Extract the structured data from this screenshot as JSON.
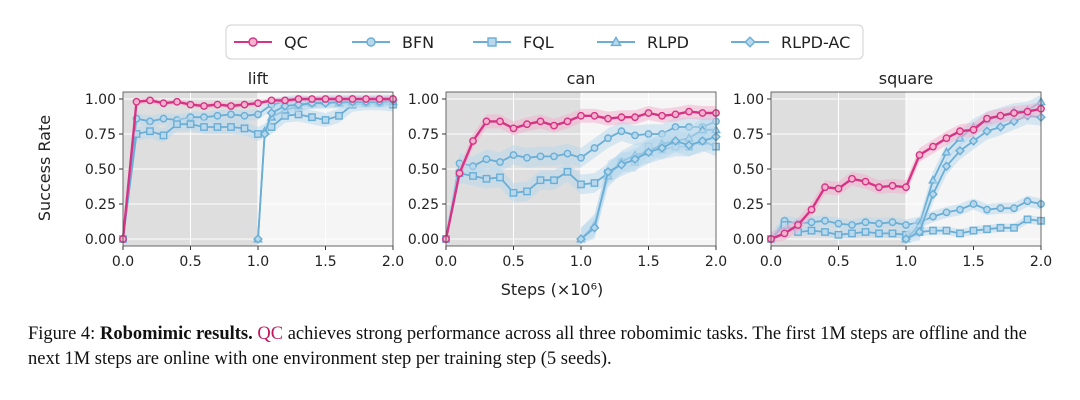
{
  "colors": {
    "qc": "#d63384",
    "qc_fill": "#f3b3cf",
    "blue": "#6aaed6",
    "blue_fill": "#b9d8ec",
    "offline_bg": "#dedede",
    "online_bg": "#f5f5f5",
    "grid": "#ffffff"
  },
  "legend": {
    "items": [
      {
        "name": "QC",
        "marker": "circle",
        "color": "#d63384"
      },
      {
        "name": "BFN",
        "marker": "circle-open",
        "color": "#6aaed6"
      },
      {
        "name": "FQL",
        "marker": "square",
        "color": "#6aaed6"
      },
      {
        "name": "RLPD",
        "marker": "triangle",
        "color": "#6aaed6"
      },
      {
        "name": "RLPD-AC",
        "marker": "diamond",
        "color": "#6aaed6"
      }
    ]
  },
  "chart_data": [
    {
      "type": "line",
      "title": "lift",
      "xlabel": "Steps (×10⁶)",
      "ylabel": "Success Rate",
      "xlim": [
        0,
        2.0
      ],
      "ylim": [
        -0.05,
        1.05
      ],
      "xticks": [
        "0.0",
        "0.5",
        "1.0",
        "1.5",
        "2.0"
      ],
      "yticks": [
        "0.00",
        "0.25",
        "0.50",
        "0.75",
        "1.00"
      ],
      "offline_region": [
        0,
        1.0
      ],
      "series": [
        {
          "name": "QC",
          "x": [
            0,
            0.1,
            0.2,
            0.3,
            0.4,
            0.5,
            0.6,
            0.7,
            0.8,
            0.9,
            1.0,
            1.1,
            1.2,
            1.3,
            1.4,
            1.5,
            1.6,
            1.7,
            1.8,
            1.9,
            2.0
          ],
          "values": [
            0,
            0.98,
            0.99,
            0.97,
            0.98,
            0.96,
            0.95,
            0.96,
            0.95,
            0.96,
            0.97,
            0.99,
            0.99,
            1.0,
            1.0,
            1.0,
            1.0,
            1.0,
            1.0,
            1.0,
            1.0
          ],
          "band": 0.02
        },
        {
          "name": "BFN",
          "x": [
            0,
            0.1,
            0.2,
            0.3,
            0.4,
            0.5,
            0.6,
            0.7,
            0.8,
            0.9,
            1.0,
            1.1,
            1.2,
            1.3,
            1.4,
            1.5,
            1.6,
            1.7,
            1.8,
            1.9,
            2.0
          ],
          "values": [
            0,
            0.86,
            0.84,
            0.86,
            0.85,
            0.87,
            0.87,
            0.88,
            0.89,
            0.88,
            0.89,
            0.96,
            0.98,
            0.99,
            0.98,
            0.99,
            0.99,
            1.0,
            0.99,
            0.99,
            1.0
          ],
          "band": 0.04
        },
        {
          "name": "FQL",
          "x": [
            0,
            0.1,
            0.2,
            0.3,
            0.4,
            0.5,
            0.6,
            0.7,
            0.8,
            0.9,
            1.0,
            1.1,
            1.2,
            1.3,
            1.4,
            1.5,
            1.6,
            1.7,
            1.8,
            1.9,
            2.0
          ],
          "values": [
            0,
            0.75,
            0.77,
            0.74,
            0.82,
            0.82,
            0.8,
            0.8,
            0.8,
            0.79,
            0.75,
            0.8,
            0.88,
            0.89,
            0.87,
            0.85,
            0.88,
            0.96,
            0.97,
            0.97,
            0.96
          ],
          "band": 0.05
        },
        {
          "name": "RLPD",
          "x": [
            1.0,
            1.05,
            1.1,
            1.2,
            1.3,
            1.4,
            1.5,
            1.6,
            1.7,
            1.8,
            1.9,
            2.0
          ],
          "values": [
            0,
            0.77,
            0.87,
            0.92,
            0.95,
            0.97,
            0.98,
            0.97,
            0.98,
            0.98,
            0.98,
            0.98
          ],
          "band": 0.04
        },
        {
          "name": "RLPD-AC",
          "x": [
            1.0,
            1.05,
            1.1,
            1.2,
            1.3,
            1.4,
            1.5,
            1.6,
            1.7,
            1.8,
            1.9,
            2.0
          ],
          "values": [
            0,
            0.75,
            0.9,
            0.95,
            0.96,
            0.97,
            0.97,
            0.98,
            0.98,
            0.98,
            0.98,
            0.99
          ],
          "band": 0.04
        }
      ]
    },
    {
      "type": "line",
      "title": "can",
      "xlim": [
        0,
        2.0
      ],
      "ylim": [
        -0.05,
        1.05
      ],
      "xticks": [
        "0.0",
        "0.5",
        "1.0",
        "1.5",
        "2.0"
      ],
      "yticks": [
        "0.00",
        "0.25",
        "0.50",
        "0.75",
        "1.00"
      ],
      "offline_region": [
        0,
        1.0
      ],
      "series": [
        {
          "name": "QC",
          "x": [
            0,
            0.1,
            0.2,
            0.3,
            0.4,
            0.5,
            0.6,
            0.7,
            0.8,
            0.9,
            1.0,
            1.1,
            1.2,
            1.3,
            1.4,
            1.5,
            1.6,
            1.7,
            1.8,
            1.9,
            2.0
          ],
          "values": [
            0,
            0.47,
            0.7,
            0.84,
            0.84,
            0.79,
            0.82,
            0.84,
            0.81,
            0.84,
            0.88,
            0.88,
            0.86,
            0.87,
            0.87,
            0.9,
            0.88,
            0.89,
            0.91,
            0.9,
            0.9
          ],
          "band": 0.05
        },
        {
          "name": "BFN",
          "x": [
            0,
            0.1,
            0.2,
            0.3,
            0.4,
            0.5,
            0.6,
            0.7,
            0.8,
            0.9,
            1.0,
            1.1,
            1.2,
            1.3,
            1.4,
            1.5,
            1.6,
            1.7,
            1.8,
            1.9,
            2.0
          ],
          "values": [
            0,
            0.54,
            0.52,
            0.57,
            0.55,
            0.6,
            0.58,
            0.59,
            0.59,
            0.61,
            0.58,
            0.65,
            0.72,
            0.77,
            0.74,
            0.75,
            0.75,
            0.8,
            0.8,
            0.8,
            0.84
          ],
          "band": 0.07
        },
        {
          "name": "FQL",
          "x": [
            0,
            0.1,
            0.2,
            0.3,
            0.4,
            0.5,
            0.6,
            0.7,
            0.8,
            0.9,
            1.0,
            1.1,
            1.2,
            1.3,
            1.4,
            1.5,
            1.6,
            1.7,
            1.8,
            1.9,
            2.0
          ],
          "values": [
            0,
            0.47,
            0.45,
            0.43,
            0.44,
            0.33,
            0.34,
            0.42,
            0.42,
            0.48,
            0.39,
            0.4,
            0.47,
            0.55,
            0.55,
            0.66,
            0.64,
            0.66,
            0.66,
            0.7,
            0.66
          ],
          "band": 0.07
        },
        {
          "name": "RLPD",
          "x": [
            1.0,
            1.1,
            1.2,
            1.3,
            1.4,
            1.5,
            1.6,
            1.7,
            1.8,
            1.9,
            2.0
          ],
          "values": [
            0,
            0.1,
            0.45,
            0.55,
            0.6,
            0.62,
            0.68,
            0.7,
            0.72,
            0.78,
            0.78
          ],
          "band": 0.08
        },
        {
          "name": "RLPD-AC",
          "x": [
            1.0,
            1.1,
            1.2,
            1.3,
            1.4,
            1.5,
            1.6,
            1.7,
            1.8,
            1.9,
            2.0
          ],
          "values": [
            0,
            0.08,
            0.48,
            0.53,
            0.57,
            0.62,
            0.65,
            0.7,
            0.67,
            0.7,
            0.73
          ],
          "band": 0.08
        }
      ]
    },
    {
      "type": "line",
      "title": "square",
      "xlim": [
        0,
        2.0
      ],
      "ylim": [
        -0.05,
        1.05
      ],
      "xticks": [
        "0.0",
        "0.5",
        "1.0",
        "1.5",
        "2.0"
      ],
      "yticks": [
        "0.00",
        "0.25",
        "0.50",
        "0.75",
        "1.00"
      ],
      "offline_region": [
        0,
        1.0
      ],
      "series": [
        {
          "name": "QC",
          "x": [
            0,
            0.1,
            0.2,
            0.3,
            0.4,
            0.5,
            0.6,
            0.7,
            0.8,
            0.9,
            1.0,
            1.1,
            1.2,
            1.3,
            1.4,
            1.5,
            1.6,
            1.7,
            1.8,
            1.9,
            2.0
          ],
          "values": [
            0,
            0.04,
            0.1,
            0.21,
            0.37,
            0.36,
            0.43,
            0.41,
            0.37,
            0.38,
            0.37,
            0.6,
            0.66,
            0.72,
            0.77,
            0.78,
            0.86,
            0.88,
            0.9,
            0.91,
            0.93
          ],
          "band": 0.05
        },
        {
          "name": "BFN",
          "x": [
            0,
            0.1,
            0.2,
            0.3,
            0.4,
            0.5,
            0.6,
            0.7,
            0.8,
            0.9,
            1.0,
            1.1,
            1.2,
            1.3,
            1.4,
            1.5,
            1.6,
            1.7,
            1.8,
            1.9,
            2.0
          ],
          "values": [
            0,
            0.13,
            0.11,
            0.12,
            0.13,
            0.11,
            0.1,
            0.12,
            0.11,
            0.12,
            0.1,
            0.12,
            0.16,
            0.19,
            0.21,
            0.25,
            0.21,
            0.22,
            0.22,
            0.27,
            0.25
          ],
          "band": 0.04
        },
        {
          "name": "FQL",
          "x": [
            0,
            0.1,
            0.2,
            0.3,
            0.4,
            0.5,
            0.6,
            0.7,
            0.8,
            0.9,
            1.0,
            1.1,
            1.2,
            1.3,
            1.4,
            1.5,
            1.6,
            1.7,
            1.8,
            1.9,
            2.0
          ],
          "values": [
            0,
            0.1,
            0.05,
            0.06,
            0.05,
            0.03,
            0.04,
            0.05,
            0.04,
            0.04,
            0.03,
            0.05,
            0.06,
            0.06,
            0.04,
            0.06,
            0.07,
            0.08,
            0.08,
            0.14,
            0.13
          ],
          "band": 0.03
        },
        {
          "name": "RLPD",
          "x": [
            1.0,
            1.1,
            1.2,
            1.3,
            1.4,
            1.5,
            1.6,
            1.7,
            1.8,
            1.9,
            2.0
          ],
          "values": [
            0,
            0.1,
            0.42,
            0.62,
            0.72,
            0.8,
            0.85,
            0.88,
            0.91,
            0.92,
            0.98
          ],
          "band": 0.06
        },
        {
          "name": "RLPD-AC",
          "x": [
            1.0,
            1.1,
            1.2,
            1.3,
            1.4,
            1.5,
            1.6,
            1.7,
            1.8,
            1.9,
            2.0
          ],
          "values": [
            0,
            0.05,
            0.32,
            0.52,
            0.63,
            0.7,
            0.77,
            0.8,
            0.84,
            0.88,
            0.87
          ],
          "band": 0.06
        }
      ]
    }
  ],
  "caption": {
    "label": "Figure 4:",
    "bold": "Robomimic results.",
    "highlight": "QC",
    "text": "achieves strong performance across all three robomimic tasks. The first 1M steps are offline and the next 1M steps are online with one environment step per training step (5 seeds)."
  }
}
